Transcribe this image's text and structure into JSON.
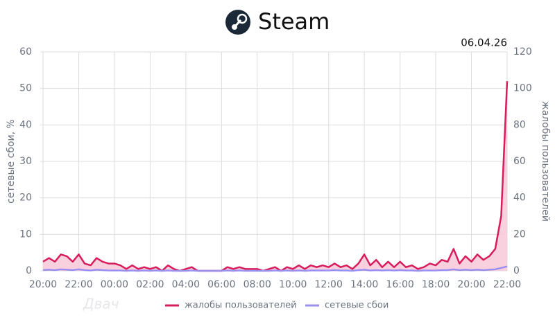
{
  "chart_data": {
    "type": "line",
    "title": "Steam",
    "date": "06.04.26",
    "watermark": "Двач",
    "y_label": "сетевые сбои, %",
    "y2_label": "жалобы пользователей",
    "categories": [
      "20:00",
      null,
      null,
      null,
      null,
      null,
      "22:00",
      null,
      null,
      null,
      null,
      null,
      "00:00",
      null,
      null,
      null,
      null,
      null,
      "02:00",
      null,
      null,
      null,
      null,
      null,
      "04:00",
      null,
      null,
      null,
      null,
      null,
      "06:00",
      null,
      null,
      null,
      null,
      null,
      "08:00",
      null,
      null,
      null,
      null,
      null,
      "10:00",
      null,
      null,
      null,
      null,
      null,
      "12:00",
      null,
      null,
      null,
      null,
      null,
      "14:00",
      null,
      null,
      null,
      null,
      null,
      "16:00",
      null,
      null,
      null,
      null,
      null,
      "18:00",
      null,
      null,
      null,
      null,
      null,
      "20:00",
      null,
      null,
      null,
      null,
      null,
      "22:00"
    ],
    "series": [
      {
        "name": "жалобы пользователей",
        "color": "#d81b5a",
        "axis": "y2",
        "fill": "#f7c6d6",
        "values": [
          5,
          7,
          5,
          9,
          8,
          5,
          9,
          4,
          3,
          7,
          5,
          4,
          4,
          3,
          1,
          3,
          1,
          2,
          1,
          2,
          0,
          3,
          1,
          0,
          1,
          2,
          0,
          0,
          0,
          0,
          0,
          2,
          1,
          2,
          1,
          1,
          1,
          0,
          1,
          2,
          0,
          2,
          1,
          3,
          1,
          3,
          2,
          3,
          2,
          4,
          2,
          3,
          1,
          4,
          9,
          3,
          6,
          2,
          5,
          2,
          5,
          2,
          3,
          1,
          2,
          4,
          3,
          6,
          5,
          12,
          4,
          8,
          5,
          9,
          6,
          8,
          12,
          30,
          104
        ]
      },
      {
        "name": "сетевые сбои",
        "color": "#9a8ff0",
        "axis": "y",
        "values": [
          0.2,
          0.3,
          0.2,
          0.4,
          0.3,
          0.2,
          0.4,
          0.2,
          0.1,
          0.3,
          0.2,
          0.1,
          0.1,
          0.1,
          0,
          0.1,
          0,
          0.1,
          0,
          0.1,
          0,
          0.1,
          0,
          0,
          0,
          0.1,
          0,
          0,
          0,
          0,
          0,
          0.1,
          0,
          0.1,
          0,
          0,
          0,
          0,
          0,
          0.1,
          0,
          0.1,
          0,
          0.1,
          0,
          0.1,
          0.1,
          0.1,
          0.1,
          0.2,
          0.1,
          0.1,
          0,
          0.2,
          0.3,
          0.1,
          0.2,
          0.1,
          0.2,
          0.1,
          0.2,
          0.1,
          0.1,
          0,
          0.1,
          0.1,
          0.1,
          0.2,
          0.2,
          0.4,
          0.2,
          0.3,
          0.2,
          0.3,
          0.2,
          0.3,
          0.4,
          0.8,
          1.2
        ]
      }
    ],
    "ylim": [
      0,
      60
    ],
    "yticks": [
      0,
      10,
      20,
      30,
      40,
      50,
      60
    ],
    "y2lim": [
      0,
      120
    ],
    "y2ticks": [
      0,
      20,
      40,
      60,
      80,
      100,
      120
    ],
    "grid": true
  }
}
